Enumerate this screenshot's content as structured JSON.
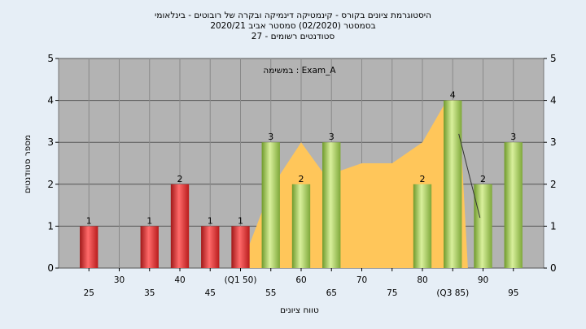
{
  "chart_data": {
    "type": "bar",
    "title_lines": [
      "היסטוגרמת ציונים בקורס - קינמטיקה דינמיקה ובקרה של רובוטים - בינלאומי",
      "בסמסטר  (02/2020)  סמסטר אביב 2020/21",
      "סטודנטים רשומים - 27"
    ],
    "xlabel": "טווח ציונים",
    "ylabel": "מספר סטודנטים",
    "legend_text": "במשימה : Exam_A",
    "ylim": [
      0,
      5
    ],
    "yticks": [
      0,
      1,
      2,
      3,
      4,
      5
    ],
    "x_range": [
      20,
      100
    ],
    "bar_width_units": 3,
    "categories": [
      25,
      35,
      40,
      45,
      50,
      55,
      60,
      65,
      80,
      85,
      90,
      95
    ],
    "values": [
      1,
      1,
      2,
      1,
      1,
      3,
      2,
      3,
      2,
      4,
      2,
      3
    ],
    "bar_groups": [
      "fail",
      "fail",
      "fail",
      "fail",
      "fail",
      "pass",
      "pass",
      "pass",
      "pass",
      "pass",
      "pass",
      "pass"
    ],
    "x_tick_labels": [
      {
        "x": 25,
        "label": "25",
        "row": 2
      },
      {
        "x": 30,
        "label": "30",
        "row": 1
      },
      {
        "x": 35,
        "label": "35",
        "row": 2
      },
      {
        "x": 40,
        "label": "40",
        "row": 1
      },
      {
        "x": 45,
        "label": "45",
        "row": 2
      },
      {
        "x": 50,
        "label": "(Q1 50)",
        "row": 1
      },
      {
        "x": 55,
        "label": "55",
        "row": 2
      },
      {
        "x": 60,
        "label": "60",
        "row": 1
      },
      {
        "x": 65,
        "label": "65",
        "row": 2
      },
      {
        "x": 70,
        "label": "70",
        "row": 1
      },
      {
        "x": 75,
        "label": "75",
        "row": 2
      },
      {
        "x": 80,
        "label": "80",
        "row": 1
      },
      {
        "x": 85,
        "label": "(Q3 85)",
        "row": 2
      },
      {
        "x": 90,
        "label": "90",
        "row": 1
      },
      {
        "x": 95,
        "label": "95",
        "row": 2
      }
    ],
    "area_points": [
      [
        50,
        0
      ],
      [
        55,
        1.9
      ],
      [
        60,
        3.0
      ],
      [
        64,
        2.2
      ],
      [
        70,
        2.5
      ],
      [
        75,
        2.5
      ],
      [
        80,
        3.0
      ],
      [
        84,
        4.0
      ],
      [
        86,
        4.0
      ],
      [
        87.5,
        0
      ]
    ],
    "trend_line": [
      [
        86,
        3.2
      ],
      [
        89.5,
        1.2
      ]
    ],
    "colors": {
      "background": "#e6eef6",
      "plot_bg": "#b3b3b3",
      "fail_bar": "#e02828",
      "pass_bar": "#9ec34d",
      "area": "#ffc65a"
    },
    "grid": true
  }
}
